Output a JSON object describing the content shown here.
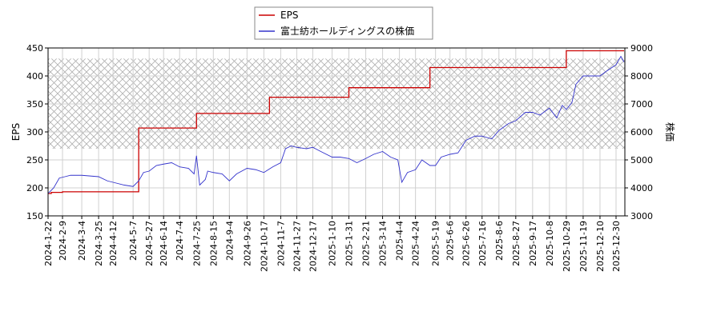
{
  "chart_data": {
    "type": "line",
    "legend": {
      "placement": "top-center",
      "entries": [
        {
          "label": "EPS",
          "color": "#cc0000"
        },
        {
          "label": "富士紡ホールディングスの株価",
          "color": "#3333cc"
        }
      ]
    },
    "x_tick_labels": [
      "2024-1-22",
      "2024-2-9",
      "2024-3-4",
      "2024-3-25",
      "2024-4-12",
      "2024-5-7",
      "2024-5-27",
      "2024-6-14",
      "2024-7-4",
      "2024-7-25",
      "2024-8-15",
      "2024-9-4",
      "2024-9-26",
      "2024-10-17",
      "2024-11-7",
      "2024-11-27",
      "2024-12-17",
      "2025-1-10",
      "2025-1-31",
      "2025-2-21",
      "2025-3-14",
      "2025-4-4",
      "2025-4-24",
      "2025-5-19",
      "2025-6-6",
      "2025-6-26",
      "2025-7-16",
      "2025-8-6",
      "2025-8-27",
      "2025-9-17",
      "2025-10-8",
      "2025-10-29",
      "2025-11-19",
      "2025-12-10",
      "2025-12-30"
    ],
    "y_left": {
      "label": "EPS",
      "range": [
        150,
        450
      ],
      "ticks": [
        150,
        200,
        250,
        300,
        350,
        400,
        450
      ]
    },
    "y_right": {
      "label": "株価",
      "range": [
        3000,
        9000
      ],
      "ticks": [
        3000,
        4000,
        5000,
        6000,
        7000,
        8000,
        9000
      ]
    },
    "grid": true,
    "hatched_band": {
      "axis": "left",
      "range": [
        270,
        431
      ]
    },
    "series": [
      {
        "name": "EPS",
        "axis": "left",
        "color": "#cc0000",
        "steps": [
          {
            "x": "2024-1-22",
            "y": 190
          },
          {
            "x": "2024-1-26",
            "y": 192
          },
          {
            "x": "2024-2-9",
            "y": 193
          },
          {
            "x": "2024-5-14",
            "y": 307
          },
          {
            "x": "2024-7-25",
            "y": 333
          },
          {
            "x": "2024-10-24",
            "y": 362
          },
          {
            "x": "2025-1-31",
            "y": 379
          },
          {
            "x": "2025-5-12",
            "y": 415
          },
          {
            "x": "2025-10-29",
            "y": 445
          }
        ],
        "end_x": "2026-1-9"
      },
      {
        "name": "富士紡ホールディングスの株価",
        "axis": "right",
        "color": "#3333cc",
        "points": [
          [
            "2024-1-22",
            3800
          ],
          [
            "2024-1-29",
            4000
          ],
          [
            "2024-2-5",
            4350
          ],
          [
            "2024-2-12",
            4400
          ],
          [
            "2024-2-19",
            4450
          ],
          [
            "2024-3-4",
            4450
          ],
          [
            "2024-3-25",
            4400
          ],
          [
            "2024-4-5",
            4250
          ],
          [
            "2024-4-12",
            4200
          ],
          [
            "2024-4-26",
            4100
          ],
          [
            "2024-5-7",
            4050
          ],
          [
            "2024-5-14",
            4250
          ],
          [
            "2024-5-20",
            4550
          ],
          [
            "2024-5-27",
            4600
          ],
          [
            "2024-6-5",
            4800
          ],
          [
            "2024-6-14",
            4850
          ],
          [
            "2024-6-24",
            4900
          ],
          [
            "2024-7-4",
            4750
          ],
          [
            "2024-7-15",
            4700
          ],
          [
            "2024-7-22",
            4500
          ],
          [
            "2024-7-25",
            5150
          ],
          [
            "2024-7-29",
            4100
          ],
          [
            "2024-8-5",
            4300
          ],
          [
            "2024-8-8",
            4600
          ],
          [
            "2024-8-15",
            4550
          ],
          [
            "2024-8-26",
            4500
          ],
          [
            "2024-9-4",
            4250
          ],
          [
            "2024-9-13",
            4500
          ],
          [
            "2024-9-26",
            4700
          ],
          [
            "2024-10-7",
            4650
          ],
          [
            "2024-10-17",
            4550
          ],
          [
            "2024-10-28",
            4750
          ],
          [
            "2024-11-7",
            4900
          ],
          [
            "2024-11-13",
            5400
          ],
          [
            "2024-11-20",
            5500
          ],
          [
            "2024-11-27",
            5450
          ],
          [
            "2024-12-9",
            5400
          ],
          [
            "2024-12-17",
            5450
          ],
          [
            "2024-12-27",
            5300
          ],
          [
            "2025-1-10",
            5100
          ],
          [
            "2025-1-20",
            5100
          ],
          [
            "2025-1-31",
            5050
          ],
          [
            "2025-2-10",
            4900
          ],
          [
            "2025-2-21",
            5050
          ],
          [
            "2025-3-3",
            5200
          ],
          [
            "2025-3-14",
            5300
          ],
          [
            "2025-3-24",
            5100
          ],
          [
            "2025-4-2",
            5000
          ],
          [
            "2025-4-7",
            4200
          ],
          [
            "2025-4-14",
            4550
          ],
          [
            "2025-4-24",
            4650
          ],
          [
            "2025-5-2",
            5000
          ],
          [
            "2025-5-12",
            4800
          ],
          [
            "2025-5-19",
            4800
          ],
          [
            "2025-5-26",
            5100
          ],
          [
            "2025-6-6",
            5200
          ],
          [
            "2025-6-16",
            5250
          ],
          [
            "2025-6-26",
            5700
          ],
          [
            "2025-7-7",
            5850
          ],
          [
            "2025-7-16",
            5850
          ],
          [
            "2025-7-28",
            5750
          ],
          [
            "2025-8-6",
            6050
          ],
          [
            "2025-8-18",
            6300
          ],
          [
            "2025-8-27",
            6400
          ],
          [
            "2025-9-8",
            6700
          ],
          [
            "2025-9-17",
            6700
          ],
          [
            "2025-9-26",
            6600
          ],
          [
            "2025-10-8",
            6850
          ],
          [
            "2025-10-17",
            6500
          ],
          [
            "2025-10-24",
            6950
          ],
          [
            "2025-10-29",
            6800
          ],
          [
            "2025-11-5",
            7050
          ],
          [
            "2025-11-10",
            7700
          ],
          [
            "2025-11-19",
            8000
          ],
          [
            "2025-12-1",
            8000
          ],
          [
            "2025-12-10",
            8000
          ],
          [
            "2025-12-17",
            8150
          ],
          [
            "2025-12-30",
            8400
          ],
          [
            "2026-1-5",
            8700
          ],
          [
            "2026-1-9",
            8500
          ]
        ]
      }
    ]
  }
}
